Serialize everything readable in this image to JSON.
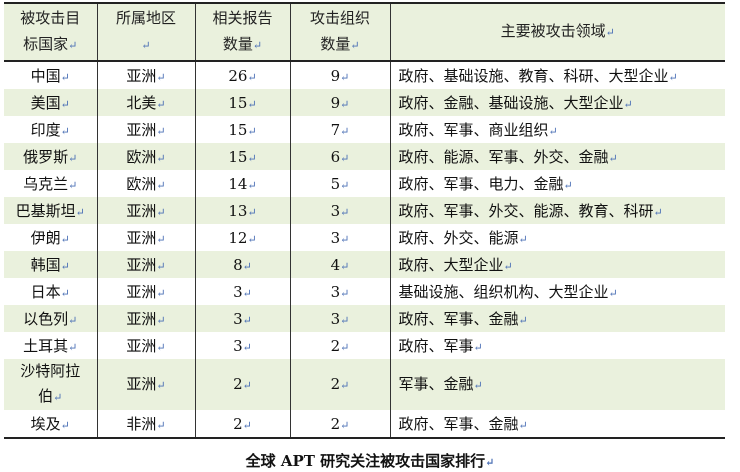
{
  "table": {
    "headers": [
      "被攻击目标国家",
      "所属地区",
      "相关报告数量",
      "攻击组织数量",
      "主要被攻击领域"
    ],
    "rows": [
      [
        "中国",
        "亚洲",
        "26",
        "9",
        "政府、基础设施、教育、科研、大型企业"
      ],
      [
        "美国",
        "北美",
        "15",
        "9",
        "政府、金融、基础设施、大型企业"
      ],
      [
        "印度",
        "亚洲",
        "15",
        "7",
        "政府、军事、商业组织"
      ],
      [
        "俄罗斯",
        "欧洲",
        "15",
        "6",
        "政府、能源、军事、外交、金融"
      ],
      [
        "乌克兰",
        "欧洲",
        "14",
        "5",
        "政府、军事、电力、金融"
      ],
      [
        "巴基斯坦",
        "亚洲",
        "13",
        "3",
        "政府、军事、外交、能源、教育、科研"
      ],
      [
        "伊朗",
        "亚洲",
        "12",
        "3",
        "政府、外交、能源"
      ],
      [
        "韩国",
        "亚洲",
        "8",
        "4",
        "政府、大型企业"
      ],
      [
        "日本",
        "亚洲",
        "3",
        "3",
        "基础设施、组织机构、大型企业"
      ],
      [
        "以色列",
        "亚洲",
        "3",
        "3",
        "政府、军事、金融"
      ],
      [
        "土耳其",
        "亚洲",
        "3",
        "2",
        "政府、军事"
      ],
      [
        "沙特阿拉伯",
        "亚洲",
        "2",
        "2",
        "军事、金融"
      ],
      [
        "埃及",
        "非洲",
        "2",
        "2",
        "政府、军事、金融"
      ]
    ]
  },
  "caption": "全球 APT 研究关注被攻击国家排行",
  "colors": {
    "row_highlight": "#eaf1dd",
    "return_mark": "#4a6fb5"
  }
}
